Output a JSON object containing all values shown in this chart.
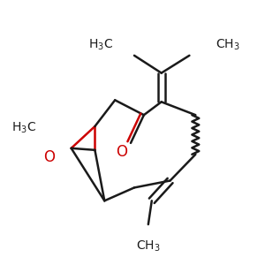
{
  "bg_color": "#ffffff",
  "bond_color": "#1a1a1a",
  "epoxide_color": "#cc0000",
  "ketone_color": "#cc0000",
  "fig_size": [
    3.0,
    3.0
  ],
  "dpi": 100
}
